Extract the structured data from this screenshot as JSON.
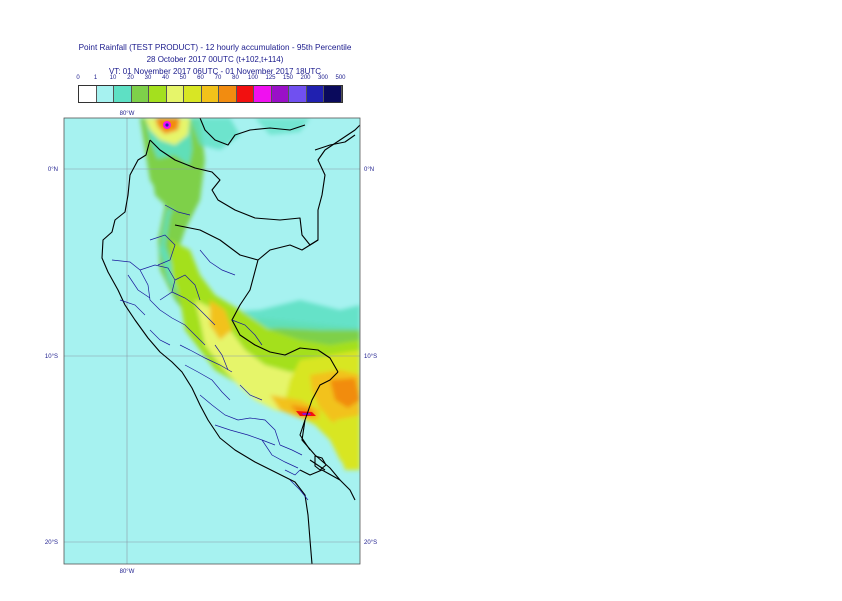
{
  "header": {
    "title_line1": "Point Rainfall (TEST PRODUCT) - 12 hourly accumulation - 95th Percentile",
    "title_line2": "28 October 2017 00UTC (t+102,t+114)",
    "title_line3": "VT: 01 November 2017 06UTC - 01 November 2017 18UTC"
  },
  "legend": {
    "ticks": [
      "0",
      "1",
      "10",
      "20",
      "30",
      "40",
      "50",
      "60",
      "70",
      "80",
      "100",
      "125",
      "150",
      "200",
      "300",
      "500"
    ],
    "colors": [
      "#ffffff",
      "#a6f2f0",
      "#5ee0c4",
      "#7ed04a",
      "#a4e01e",
      "#e6f56a",
      "#d8e624",
      "#f2c21a",
      "#f28c10",
      "#f21010",
      "#f010f0",
      "#9a10c8",
      "#7050f0",
      "#2020b0",
      "#0a0a5c"
    ]
  },
  "map": {
    "lat_labels": [
      "0°N",
      "10°S",
      "20°S"
    ],
    "lon_label_top": "80°W",
    "lon_label_bottom": "80°W",
    "ocean_color": "#a6f2f0"
  }
}
